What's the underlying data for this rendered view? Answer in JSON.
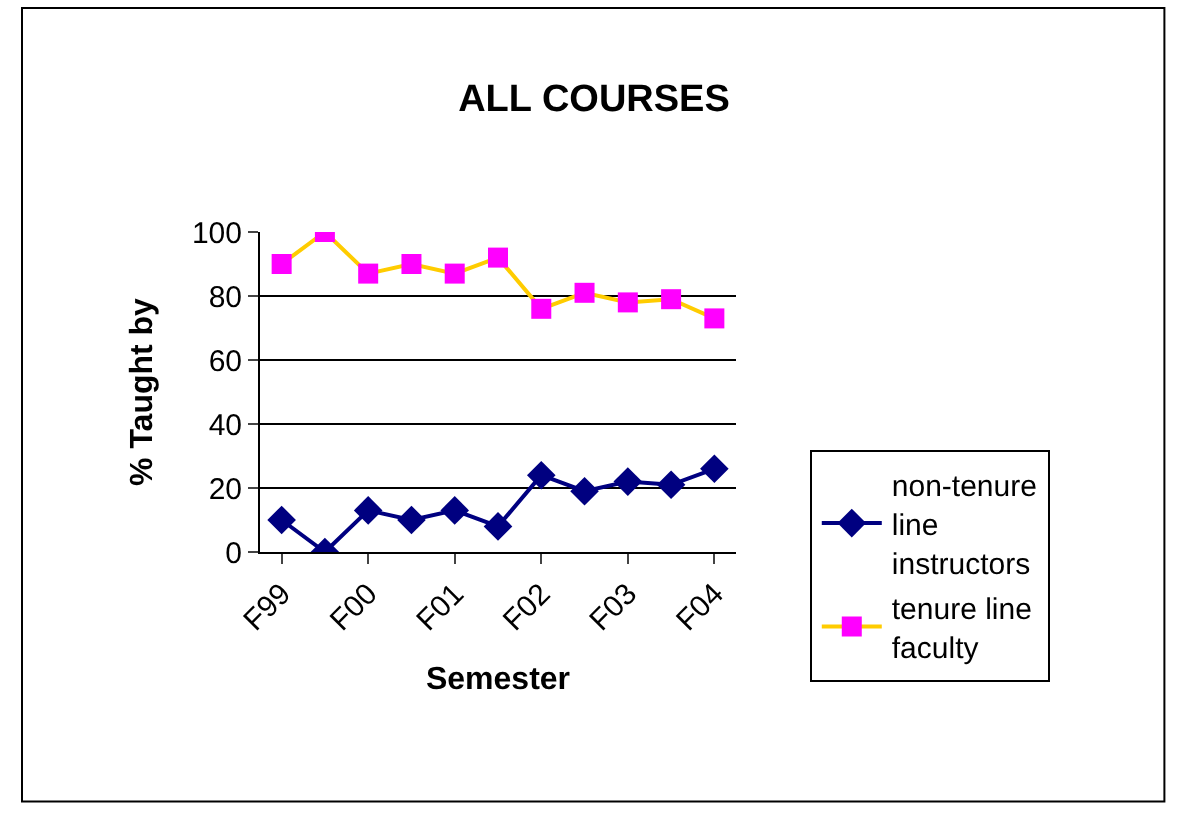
{
  "chart_data": {
    "type": "line",
    "title": "ALL COURSES",
    "xlabel": "Semester",
    "ylabel": "% Taught by",
    "categories": [
      "F99",
      null,
      "F00",
      null,
      "F01",
      null,
      "F02",
      null,
      "F03",
      null,
      "F04"
    ],
    "series": [
      {
        "name": "non-tenure line instructors",
        "color": "#000080",
        "marker": "diamond",
        "values": [
          10,
          0,
          13,
          10,
          13,
          8,
          24,
          19,
          22,
          21,
          26
        ]
      },
      {
        "name": "tenure line faculty",
        "color": "#ffcc00",
        "colors": [
          "#ff00ff",
          "#ff00ff",
          "#ff00ff",
          "#ff00ff",
          "#ff00ff",
          "#ff00ff",
          "#ff00ff",
          "#ff00ff",
          "#ff00ff",
          "#ff00ff",
          "#ff00ff"
        ],
        "marker": "square",
        "values": [
          90,
          100,
          87,
          90,
          87,
          92,
          76,
          81,
          78,
          79,
          73
        ]
      }
    ],
    "ylim": [
      0,
      100
    ],
    "yticks": [
      0,
      20,
      40,
      60,
      80,
      100
    ],
    "grid": "y",
    "legend": "right",
    "line_style": "solid"
  }
}
